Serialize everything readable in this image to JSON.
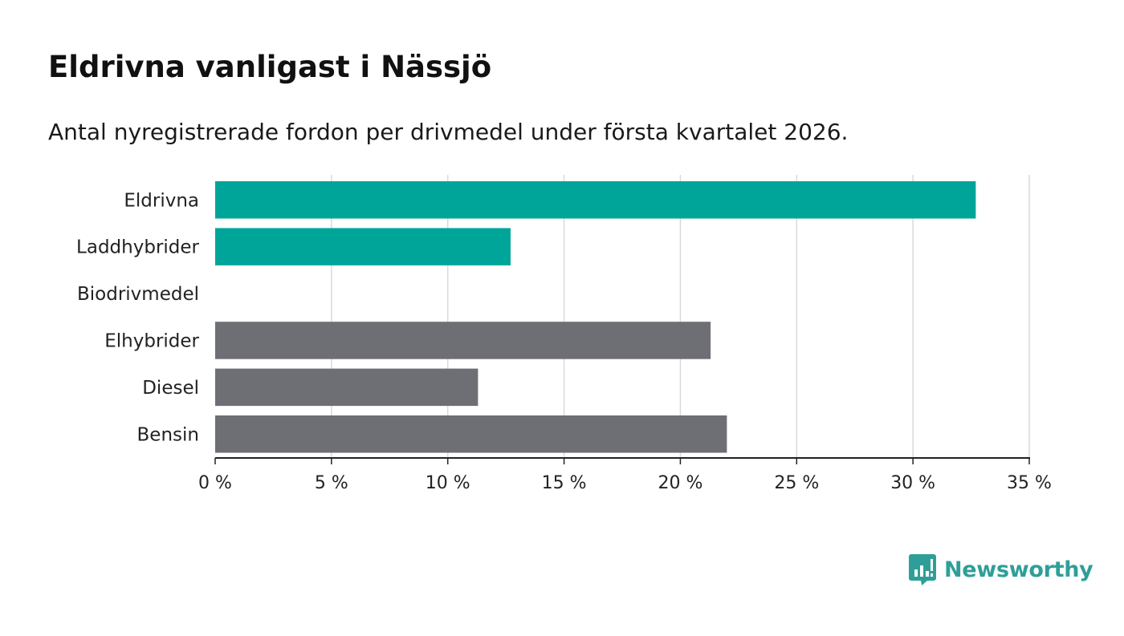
{
  "colors": {
    "highlight": "#00a59a",
    "default": "#6e6e75",
    "grid": "#dadada",
    "axis": "#222222",
    "brand": "#2e9f98"
  },
  "brand": {
    "name": "Newsworthy",
    "icon": "bar-chart-speech-bubble-icon"
  },
  "chart_data": {
    "type": "bar",
    "orientation": "horizontal",
    "title": "Eldrivna vanligast i Nässjö",
    "subtitle": "Antal nyregistrerade fordon per drivmedel under första kvartalet 2026.",
    "categories": [
      "Eldrivna",
      "Laddhybrider",
      "Biodrivmedel",
      "Elhybrider",
      "Diesel",
      "Bensin"
    ],
    "values": [
      32.7,
      12.7,
      0,
      21.3,
      11.3,
      22.0
    ],
    "highlight": [
      true,
      true,
      true,
      false,
      false,
      false
    ],
    "unit": "%",
    "xlim": [
      0,
      35
    ],
    "xticks": [
      0,
      5,
      10,
      15,
      20,
      25,
      30,
      35
    ],
    "xtick_labels": [
      "0 %",
      "5 %",
      "10 %",
      "15 %",
      "20 %",
      "25 %",
      "30 %",
      "35 %"
    ],
    "grid": true,
    "xlabel": "",
    "ylabel": ""
  }
}
